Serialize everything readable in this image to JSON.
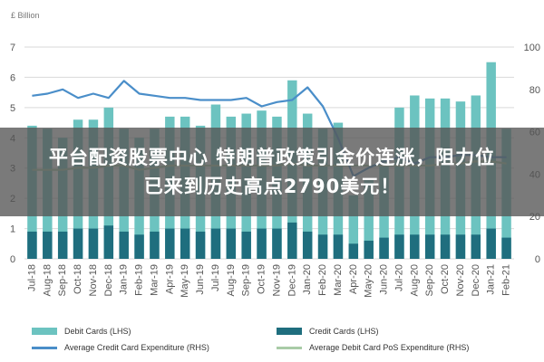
{
  "chart_data": {
    "type": "bar",
    "unit_label": "£ Billion",
    "left_axis": {
      "ticks": [
        "0",
        "1",
        "2",
        "3",
        "4",
        "5",
        "6",
        "7"
      ],
      "ylim": [
        0,
        7
      ]
    },
    "right_axis": {
      "ticks": [
        "0",
        "20",
        "40",
        "60",
        "80",
        "100"
      ],
      "ylim": [
        0,
        100
      ]
    },
    "categories": [
      "Jul-18",
      "Aug-18",
      "Sep-18",
      "Oct-18",
      "Nov-18",
      "Dec-18",
      "Jan-19",
      "Feb-19",
      "Mar-19",
      "Apr-19",
      "May-19",
      "Jun-19",
      "Jul-19",
      "Aug-19",
      "Sep-19",
      "Oct-19",
      "Nov-19",
      "Dec-19",
      "Jan-20",
      "Feb-20",
      "Mar-20",
      "Apr-20",
      "May-20",
      "Jun-20",
      "Jul-20",
      "Aug-20",
      "Sep-20",
      "Oct-20",
      "Nov-20",
      "Dec-20",
      "Jan-21",
      "Feb-21"
    ],
    "series": [
      {
        "name": "Debit Cards (LHS)",
        "kind": "bar",
        "axis": "left",
        "color": "#6cc3c0",
        "values": [
          4.4,
          4.3,
          4.0,
          4.6,
          4.6,
          5.0,
          4.3,
          4.0,
          4.3,
          4.7,
          4.7,
          4.4,
          5.1,
          4.7,
          4.8,
          4.9,
          4.7,
          5.9,
          4.8,
          4.3,
          4.5,
          2.1,
          2.6,
          3.3,
          5.0,
          5.4,
          5.3,
          5.3,
          5.2,
          5.4,
          6.5,
          4.3
        ]
      },
      {
        "name": "Credit Cards (LHS)",
        "kind": "bar",
        "axis": "left",
        "color": "#1f6e7e",
        "values": [
          0.9,
          0.9,
          0.9,
          1.0,
          1.0,
          1.1,
          0.9,
          0.8,
          0.9,
          1.0,
          1.0,
          0.9,
          1.0,
          1.0,
          0.9,
          1.0,
          1.0,
          1.2,
          0.9,
          0.8,
          0.8,
          0.5,
          0.6,
          0.7,
          0.8,
          0.8,
          0.8,
          0.8,
          0.8,
          0.8,
          1.0,
          0.7
        ]
      },
      {
        "name": "Average Credit Card Expenditure (RHS)",
        "kind": "line",
        "axis": "right",
        "color": "#4a8ec9",
        "values": [
          77,
          78,
          80,
          76,
          78,
          76,
          84,
          78,
          77,
          76,
          76,
          75,
          75,
          75,
          76,
          72,
          74,
          75,
          81,
          72,
          57,
          39,
          43,
          46,
          48,
          45,
          48,
          48,
          49,
          49,
          48,
          48
        ]
      },
      {
        "name": "Average Debit Card PoS Expenditure (RHS)",
        "kind": "line",
        "axis": "right",
        "color": "#a9cba7",
        "values": [
          42,
          42,
          42,
          43,
          43,
          44,
          44,
          42,
          43,
          44,
          44,
          44,
          44,
          44,
          44,
          44,
          44,
          45,
          44,
          44,
          44,
          44,
          44,
          44,
          44,
          44,
          44,
          45,
          45,
          46,
          46,
          45
        ]
      }
    ]
  },
  "banner": {
    "line1": "平台配资股票中心 特朗普政策引金价连涨，阻力位",
    "line2": "已来到历史高点2790美元！"
  }
}
